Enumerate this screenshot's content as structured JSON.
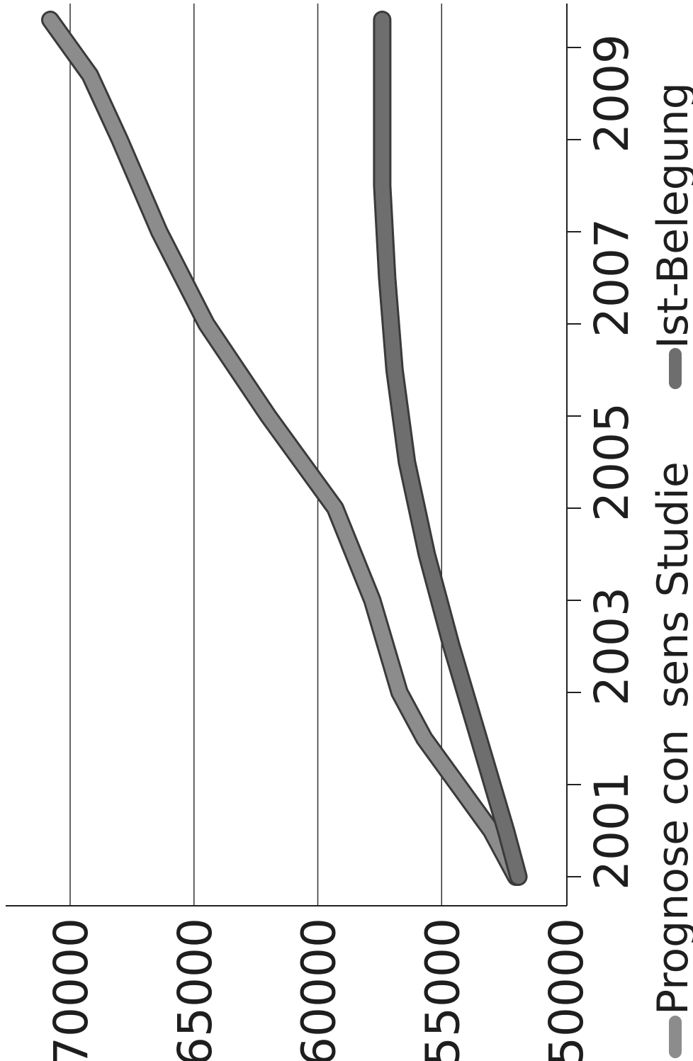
{
  "chart_data": {
    "type": "line",
    "orientation": "rotated-90-ccw",
    "x": [
      2000.5,
      2001,
      2002,
      2003,
      2004,
      2005,
      2006,
      2007,
      2008,
      2009,
      2010
    ],
    "xticks": [
      2001,
      2002,
      2003,
      2004,
      2005,
      2006,
      2007,
      2008,
      2009,
      2010
    ],
    "xtick_labels": [
      "2001",
      "",
      "2003",
      "",
      "2005",
      "",
      "2007",
      "",
      "2009",
      ""
    ],
    "xlim": [
      2000.5,
      2010
    ],
    "yticks": [
      50000,
      55000,
      60000,
      65000,
      70000
    ],
    "ytick_labels": [
      "50000",
      "55000",
      "60000",
      "65000",
      "70000"
    ],
    "ylim": [
      50000,
      70000
    ],
    "grid": true,
    "legend_position": "bottom",
    "series": [
      {
        "name": "Prognose con_sens Studie",
        "color": "#8c8c8c",
        "x": [
          2000.5,
          2001,
          2002,
          2002.5,
          2003.5,
          2004.5,
          2005.5,
          2006.5,
          2007.5,
          2008.5,
          2009.2,
          2009.8
        ],
        "values": [
          52000,
          53000,
          55700,
          56700,
          57800,
          59300,
          62000,
          64500,
          66400,
          68000,
          69200,
          70800
        ]
      },
      {
        "name": "Ist-Belegung",
        "color": "#6e6e6e",
        "x": [
          2000.5,
          2001,
          2002,
          2003,
          2004,
          2005,
          2006,
          2007,
          2008,
          2009,
          2009.8
        ],
        "values": [
          51900,
          52400,
          53500,
          54600,
          55600,
          56400,
          56900,
          57200,
          57400,
          57400,
          57400
        ]
      }
    ]
  }
}
